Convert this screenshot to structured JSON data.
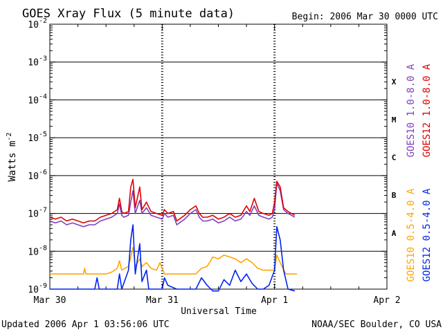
{
  "chart_data": {
    "type": "line",
    "title": "GOES Xray Flux (5 minute data)",
    "begin_label": "Begin:  2006 Mar 30 0000 UTC",
    "xlabel": "Universal Time",
    "ylabel_base": "Watts m",
    "ylabel_exp": "-2",
    "yscale": "log",
    "ylim": [
      1e-09,
      0.01
    ],
    "xlim_days": [
      0,
      3
    ],
    "x_ticks": [
      {
        "day": 0,
        "label": "Mar 30"
      },
      {
        "day": 1,
        "label": "Mar 31"
      },
      {
        "day": 2,
        "label": "Apr 1"
      },
      {
        "day": 3,
        "label": "Apr 2"
      }
    ],
    "y_ticks": [
      {
        "exp": -2,
        "base": "10",
        "sup": "-2"
      },
      {
        "exp": -3,
        "base": "10",
        "sup": "-3"
      },
      {
        "exp": -4,
        "base": "10",
        "sup": "-4"
      },
      {
        "exp": -5,
        "base": "10",
        "sup": "-5"
      },
      {
        "exp": -6,
        "base": "10",
        "sup": "-6"
      },
      {
        "exp": -7,
        "base": "10",
        "sup": "-7"
      },
      {
        "exp": -8,
        "base": "10",
        "sup": "-8"
      },
      {
        "exp": -9,
        "base": "10",
        "sup": "-9"
      }
    ],
    "flare_classes": [
      {
        "label": "X",
        "exp": -3.5
      },
      {
        "label": "M",
        "exp": -4.5
      },
      {
        "label": "C",
        "exp": -5.5
      },
      {
        "label": "B",
        "exp": -6.5
      },
      {
        "label": "A",
        "exp": -7.5
      }
    ],
    "grid_exps": [
      -3,
      -4,
      -5,
      -6,
      -7,
      -8
    ],
    "series": [
      {
        "name": "GOES10 1.0-8.0 A",
        "color": "#7f3fbf",
        "points": [
          [
            0.0,
            -7.2
          ],
          [
            0.05,
            -7.25
          ],
          [
            0.1,
            -7.2
          ],
          [
            0.15,
            -7.3
          ],
          [
            0.2,
            -7.25
          ],
          [
            0.25,
            -7.3
          ],
          [
            0.3,
            -7.35
          ],
          [
            0.35,
            -7.3
          ],
          [
            0.4,
            -7.3
          ],
          [
            0.45,
            -7.2
          ],
          [
            0.5,
            -7.15
          ],
          [
            0.55,
            -7.1
          ],
          [
            0.6,
            -7.0
          ],
          [
            0.62,
            -6.75
          ],
          [
            0.64,
            -7.05
          ],
          [
            0.66,
            -7.1
          ],
          [
            0.7,
            -7.05
          ],
          [
            0.72,
            -6.7
          ],
          [
            0.74,
            -6.4
          ],
          [
            0.76,
            -7.0
          ],
          [
            0.8,
            -6.65
          ],
          [
            0.82,
            -7.0
          ],
          [
            0.86,
            -6.85
          ],
          [
            0.9,
            -7.05
          ],
          [
            0.95,
            -7.1
          ],
          [
            1.0,
            -7.15
          ],
          [
            1.02,
            -7.0
          ],
          [
            1.05,
            -7.1
          ],
          [
            1.1,
            -7.05
          ],
          [
            1.13,
            -7.3
          ],
          [
            1.2,
            -7.15
          ],
          [
            1.25,
            -7.0
          ],
          [
            1.3,
            -6.9
          ],
          [
            1.33,
            -7.1
          ],
          [
            1.36,
            -7.2
          ],
          [
            1.4,
            -7.2
          ],
          [
            1.45,
            -7.15
          ],
          [
            1.5,
            -7.25
          ],
          [
            1.55,
            -7.2
          ],
          [
            1.6,
            -7.1
          ],
          [
            1.65,
            -7.2
          ],
          [
            1.7,
            -7.15
          ],
          [
            1.75,
            -6.95
          ],
          [
            1.78,
            -7.05
          ],
          [
            1.82,
            -6.8
          ],
          [
            1.86,
            -7.05
          ],
          [
            1.9,
            -7.1
          ],
          [
            1.95,
            -7.15
          ],
          [
            1.98,
            -7.1
          ],
          [
            2.0,
            -6.9
          ],
          [
            2.02,
            -6.2
          ],
          [
            2.05,
            -6.4
          ],
          [
            2.08,
            -6.9
          ],
          [
            2.12,
            -7.0
          ],
          [
            2.15,
            -7.05
          ],
          [
            2.18,
            -7.1
          ]
        ]
      },
      {
        "name": "GOES12 1.0-8.0 A",
        "color": "#dd0000",
        "points": [
          [
            0.0,
            -7.1
          ],
          [
            0.05,
            -7.15
          ],
          [
            0.1,
            -7.1
          ],
          [
            0.15,
            -7.2
          ],
          [
            0.2,
            -7.15
          ],
          [
            0.25,
            -7.2
          ],
          [
            0.3,
            -7.25
          ],
          [
            0.35,
            -7.2
          ],
          [
            0.4,
            -7.2
          ],
          [
            0.45,
            -7.1
          ],
          [
            0.5,
            -7.05
          ],
          [
            0.55,
            -7.0
          ],
          [
            0.6,
            -6.9
          ],
          [
            0.62,
            -6.6
          ],
          [
            0.64,
            -6.95
          ],
          [
            0.66,
            -7.0
          ],
          [
            0.7,
            -6.95
          ],
          [
            0.72,
            -6.3
          ],
          [
            0.74,
            -6.1
          ],
          [
            0.76,
            -6.85
          ],
          [
            0.8,
            -6.3
          ],
          [
            0.82,
            -6.9
          ],
          [
            0.86,
            -6.7
          ],
          [
            0.9,
            -6.95
          ],
          [
            0.95,
            -7.0
          ],
          [
            1.0,
            -7.05
          ],
          [
            1.02,
            -6.9
          ],
          [
            1.05,
            -7.0
          ],
          [
            1.1,
            -6.95
          ],
          [
            1.13,
            -7.2
          ],
          [
            1.2,
            -7.05
          ],
          [
            1.25,
            -6.9
          ],
          [
            1.3,
            -6.8
          ],
          [
            1.33,
            -7.0
          ],
          [
            1.36,
            -7.1
          ],
          [
            1.4,
            -7.1
          ],
          [
            1.45,
            -7.05
          ],
          [
            1.5,
            -7.15
          ],
          [
            1.55,
            -7.1
          ],
          [
            1.6,
            -7.0
          ],
          [
            1.65,
            -7.1
          ],
          [
            1.7,
            -7.05
          ],
          [
            1.75,
            -6.8
          ],
          [
            1.78,
            -6.95
          ],
          [
            1.82,
            -6.6
          ],
          [
            1.86,
            -6.95
          ],
          [
            1.9,
            -7.0
          ],
          [
            1.95,
            -7.05
          ],
          [
            1.98,
            -7.0
          ],
          [
            2.0,
            -6.7
          ],
          [
            2.02,
            -6.15
          ],
          [
            2.05,
            -6.3
          ],
          [
            2.08,
            -6.85
          ],
          [
            2.12,
            -6.95
          ],
          [
            2.15,
            -7.0
          ],
          [
            2.18,
            -7.05
          ]
        ]
      },
      {
        "name": "GOES10 0.5-4.0 A",
        "color": "#ffa500",
        "points": [
          [
            0.0,
            -8.6
          ],
          [
            0.3,
            -8.6
          ],
          [
            0.31,
            -8.45
          ],
          [
            0.32,
            -8.6
          ],
          [
            0.5,
            -8.6
          ],
          [
            0.55,
            -8.55
          ],
          [
            0.6,
            -8.45
          ],
          [
            0.62,
            -8.25
          ],
          [
            0.64,
            -8.5
          ],
          [
            0.7,
            -8.4
          ],
          [
            0.72,
            -8.15
          ],
          [
            0.74,
            -7.9
          ],
          [
            0.76,
            -8.4
          ],
          [
            0.8,
            -8.2
          ],
          [
            0.82,
            -8.4
          ],
          [
            0.86,
            -8.3
          ],
          [
            0.9,
            -8.45
          ],
          [
            0.95,
            -8.5
          ],
          [
            0.98,
            -8.3
          ],
          [
            1.0,
            -8.45
          ],
          [
            1.02,
            -8.6
          ],
          [
            1.1,
            -8.6
          ],
          [
            1.3,
            -8.6
          ],
          [
            1.35,
            -8.45
          ],
          [
            1.4,
            -8.4
          ],
          [
            1.45,
            -8.15
          ],
          [
            1.5,
            -8.2
          ],
          [
            1.55,
            -8.1
          ],
          [
            1.6,
            -8.15
          ],
          [
            1.65,
            -8.2
          ],
          [
            1.7,
            -8.3
          ],
          [
            1.75,
            -8.2
          ],
          [
            1.8,
            -8.3
          ],
          [
            1.85,
            -8.45
          ],
          [
            1.9,
            -8.5
          ],
          [
            1.95,
            -8.5
          ],
          [
            2.0,
            -8.5
          ],
          [
            2.02,
            -8.1
          ],
          [
            2.05,
            -8.3
          ],
          [
            2.1,
            -8.6
          ],
          [
            2.2,
            -8.6
          ]
        ]
      },
      {
        "name": "GOES12 0.5-4.0 A",
        "color": "#0022ee",
        "points": [
          [
            0.0,
            -9.0
          ],
          [
            0.4,
            -9.0
          ],
          [
            0.42,
            -8.7
          ],
          [
            0.44,
            -9.0
          ],
          [
            0.6,
            -9.0
          ],
          [
            0.62,
            -8.6
          ],
          [
            0.64,
            -9.0
          ],
          [
            0.7,
            -8.5
          ],
          [
            0.72,
            -7.7
          ],
          [
            0.74,
            -7.3
          ],
          [
            0.76,
            -8.6
          ],
          [
            0.8,
            -7.8
          ],
          [
            0.82,
            -8.8
          ],
          [
            0.86,
            -8.5
          ],
          [
            0.88,
            -9.0
          ],
          [
            0.95,
            -9.0
          ],
          [
            1.0,
            -9.0
          ],
          [
            1.02,
            -8.7
          ],
          [
            1.05,
            -8.9
          ],
          [
            1.13,
            -9.0
          ],
          [
            1.3,
            -9.0
          ],
          [
            1.35,
            -8.7
          ],
          [
            1.4,
            -8.9
          ],
          [
            1.45,
            -9.05
          ],
          [
            1.5,
            -9.05
          ],
          [
            1.55,
            -8.75
          ],
          [
            1.6,
            -8.9
          ],
          [
            1.65,
            -8.5
          ],
          [
            1.7,
            -8.8
          ],
          [
            1.75,
            -8.6
          ],
          [
            1.8,
            -8.85
          ],
          [
            1.85,
            -9.0
          ],
          [
            1.9,
            -9.0
          ],
          [
            1.95,
            -8.9
          ],
          [
            2.0,
            -8.5
          ],
          [
            2.02,
            -7.35
          ],
          [
            2.05,
            -7.7
          ],
          [
            2.08,
            -8.5
          ],
          [
            2.12,
            -9.0
          ],
          [
            2.18,
            -9.05
          ]
        ]
      }
    ],
    "right_legend_top": [
      {
        "text": "GOES10 1.0-8.0 A",
        "color": "#7f3fbf"
      },
      {
        "text": "GOES12 1.0-8.0 A",
        "color": "#dd0000"
      }
    ],
    "right_legend_bottom": [
      {
        "text": "GOES10 0.5-4.0 A",
        "color": "#ffa500"
      },
      {
        "text": "GOES12 0.5-4.0 A",
        "color": "#0022ee"
      }
    ]
  },
  "footer": {
    "updated": "Updated 2006 Apr  1 03:56:06 UTC",
    "credit": "NOAA/SEC Boulder, CO USA"
  }
}
